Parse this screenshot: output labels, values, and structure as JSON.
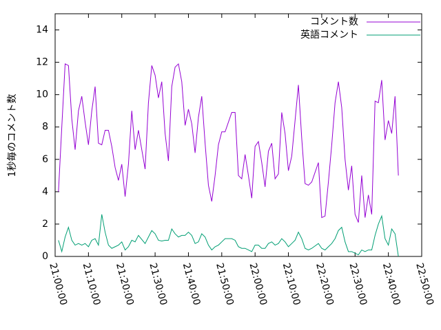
{
  "chart_data": {
    "type": "line",
    "ylabel": "1秒毎のコメント数",
    "x": [
      1,
      2,
      3,
      4,
      5,
      6,
      7,
      8,
      9,
      10,
      11,
      12,
      13,
      14,
      15,
      16,
      17,
      18,
      19,
      20,
      21,
      22,
      23,
      24,
      25,
      27,
      28,
      29,
      30,
      31,
      32,
      33,
      34,
      35,
      36,
      37,
      38,
      39,
      40,
      41,
      42,
      43,
      44,
      45,
      46,
      47,
      48,
      49,
      50,
      51,
      53,
      54,
      55,
      56,
      57,
      58,
      59,
      60,
      61,
      62,
      63,
      64,
      65,
      66,
      67,
      68,
      69,
      70,
      71,
      72,
      73,
      74,
      75,
      76,
      77,
      79,
      80,
      81,
      82,
      83,
      84,
      85,
      86,
      87,
      88,
      89,
      90,
      91,
      92,
      93,
      94,
      95,
      96,
      97,
      98,
      99,
      100,
      101,
      102,
      103
    ],
    "series": [
      {
        "name": "コメント数",
        "color": "#9400d3",
        "values": [
          4.0,
          8,
          11.9,
          11.8,
          8.5,
          6.6,
          9,
          9.9,
          8.3,
          6.9,
          9,
          10.5,
          7,
          6.9,
          7.8,
          7.8,
          6.8,
          5.5,
          4.7,
          5.7,
          3.7,
          5.7,
          9,
          6.6,
          7.8,
          5.4,
          9.5,
          11.8,
          11.2,
          9.8,
          10.8,
          7.6,
          5.9,
          10.5,
          11.7,
          11.9,
          10.8,
          8.1,
          9.1,
          8.2,
          6.4,
          8.6,
          9.9,
          7,
          4.4,
          3.4,
          5,
          6.9,
          7.7,
          7.7,
          8.9,
          8.9,
          5,
          4.8,
          6.3,
          5,
          3.6,
          6.8,
          7.1,
          5.8,
          4.3,
          6.5,
          7,
          4.8,
          5.1,
          8.9,
          7.6,
          5.3,
          6.2,
          8.4,
          10.6,
          7.3,
          4.5,
          4.4,
          4.6,
          5.8,
          2.4,
          2.5,
          4.6,
          6.9,
          9.5,
          10.8,
          9.2,
          6,
          4.1,
          5.6,
          2.6,
          2.1,
          5,
          2.4,
          3.8,
          2.6,
          9.6,
          9.5,
          10.9,
          7.2,
          8.4,
          7.6,
          9.9,
          5.0
        ]
      },
      {
        "name": "英語コメント",
        "color": "#009e73",
        "values": [
          1.0,
          0.3,
          1.2,
          1.8,
          1.0,
          0.7,
          0.8,
          0.7,
          0.8,
          0.6,
          1.0,
          1.1,
          0.7,
          2.6,
          1.5,
          0.7,
          0.5,
          0.6,
          0.7,
          0.9,
          0.4,
          0.6,
          1.0,
          0.9,
          1.3,
          0.8,
          1.2,
          1.6,
          1.4,
          1.0,
          0.95,
          1.0,
          1.0,
          1.7,
          1.4,
          1.2,
          1.3,
          1.3,
          1.5,
          1.3,
          0.8,
          0.9,
          1.4,
          1.2,
          0.7,
          0.4,
          0.6,
          0.7,
          0.9,
          1.1,
          1.1,
          1.0,
          0.6,
          0.5,
          0.5,
          0.4,
          0.3,
          0.7,
          0.7,
          0.5,
          0.5,
          0.8,
          0.9,
          0.7,
          0.8,
          1.1,
          0.9,
          0.6,
          0.8,
          1.0,
          1.5,
          1.1,
          0.5,
          0.4,
          0.5,
          0.8,
          0.5,
          0.4,
          0.6,
          0.8,
          1.1,
          1.6,
          1.8,
          0.9,
          0.3,
          0.3,
          0.2,
          0.1,
          0.4,
          0.3,
          0.4,
          0.4,
          1.3,
          2.0,
          2.5,
          1.1,
          0.7,
          1.7,
          1.4,
          0.0
        ]
      }
    ],
    "xlim": [
      0,
      110
    ],
    "xticks": [
      {
        "value": 0,
        "label": "21:00:00"
      },
      {
        "value": 10,
        "label": "21:10:00"
      },
      {
        "value": 20,
        "label": "21:20:00"
      },
      {
        "value": 30,
        "label": "21:30:00"
      },
      {
        "value": 40,
        "label": "21:40:00"
      },
      {
        "value": 50,
        "label": "21:50:00"
      },
      {
        "value": 60,
        "label": "22:00:00"
      },
      {
        "value": 70,
        "label": "22:10:00"
      },
      {
        "value": 80,
        "label": "22:20:00"
      },
      {
        "value": 90,
        "label": "22:30:00"
      },
      {
        "value": 100,
        "label": "22:40:00"
      },
      {
        "value": 110,
        "label": "22:50:00"
      }
    ],
    "ylim": [
      0,
      15
    ],
    "yticks": [
      0,
      2,
      4,
      6,
      8,
      10,
      12,
      14
    ],
    "legend": "top-right"
  }
}
